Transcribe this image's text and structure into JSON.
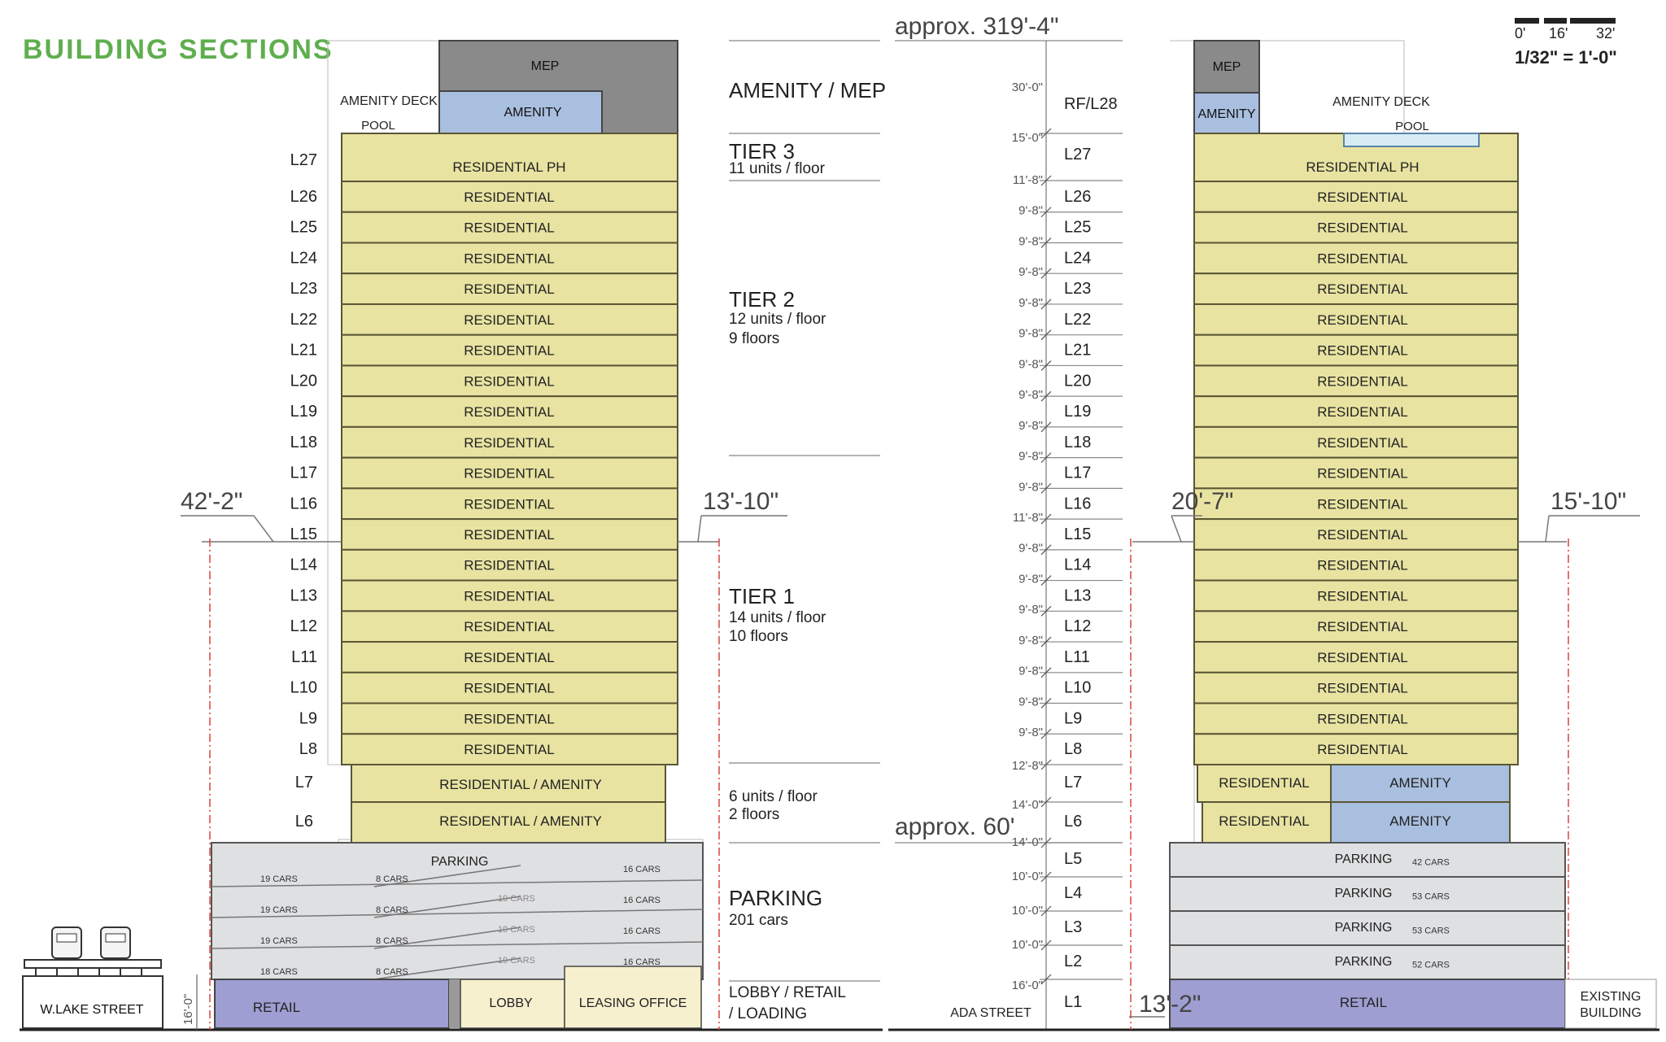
{
  "title": "BUILDING SECTIONS",
  "scale": {
    "marks": [
      "0'",
      "16'",
      "32'"
    ],
    "ratio": "1/32\" = 1'-0\""
  },
  "left_section": {
    "mep": "MEP",
    "amenity": "AMENITY",
    "amenity_deck": "AMENITY DECK",
    "pool": "POOL",
    "penthouse": {
      "level": "L27",
      "label": "RESIDENTIAL PH"
    },
    "residential_levels": [
      "L26",
      "L25",
      "L24",
      "L23",
      "L22",
      "L21",
      "L20",
      "L19",
      "L18",
      "L17",
      "L16",
      "L15",
      "L14",
      "L13",
      "L12",
      "L11",
      "L10",
      "L9",
      "L8"
    ],
    "residential_label": "RESIDENTIAL",
    "podium_levels": [
      {
        "level": "L7",
        "label": "RESIDENTIAL / AMENITY"
      },
      {
        "level": "L6",
        "label": "RESIDENTIAL / AMENITY"
      }
    ],
    "parking_title": "PARKING",
    "parking_rows": [
      {
        "left": "19 CARS",
        "mid": "8 CARS",
        "center": "",
        "right": "16 CARS"
      },
      {
        "left": "19 CARS",
        "mid": "8 CARS",
        "center": "19 CARS",
        "right": "16 CARS"
      },
      {
        "left": "19 CARS",
        "mid": "8 CARS",
        "center": "19 CARS",
        "right": "16 CARS"
      },
      {
        "left": "18 CARS",
        "mid": "8 CARS",
        "center": "19 CARS",
        "right": "16 CARS"
      }
    ],
    "ground": {
      "retail": "RETAIL",
      "lobby": "LOBBY",
      "leasing": "LEASING OFFICE"
    },
    "setback_left": "42'-2\"",
    "setback_right": "13'-10\"",
    "ground_height": "16'-0\"",
    "street": "W.LAKE STREET"
  },
  "tiers": [
    {
      "title": "AMENITY / MEP",
      "lines": []
    },
    {
      "title": "TIER 3",
      "lines": [
        "11 units / floor"
      ]
    },
    {
      "title": "TIER 2",
      "lines": [
        "12 units / floor",
        "9 floors"
      ]
    },
    {
      "title": "TIER 1",
      "lines": [
        "14 units / floor",
        "10 floors"
      ]
    },
    {
      "title": "",
      "lines": [
        "6 units / floor",
        "2 floors"
      ]
    },
    {
      "title": "PARKING",
      "lines": [
        "201 cars"
      ]
    },
    {
      "title": "LOBBY / RETAIL",
      "lines": [
        "/ LOADING"
      ]
    }
  ],
  "elevations": {
    "top": "approx. 319'-4\"",
    "podium": "approx. 60'",
    "floors": [
      {
        "level": "RF/L28",
        "height": "30'-0\""
      },
      {
        "level": "L27",
        "height": "15'-0\""
      },
      {
        "level": "L26",
        "height": "11'-8\""
      },
      {
        "level": "L25",
        "height": "9'-8\""
      },
      {
        "level": "L24",
        "height": "9'-8\""
      },
      {
        "level": "L23",
        "height": "9'-8\""
      },
      {
        "level": "L22",
        "height": "9'-8\""
      },
      {
        "level": "L21",
        "height": "9'-8\""
      },
      {
        "level": "L20",
        "height": "9'-8\""
      },
      {
        "level": "L19",
        "height": "9'-8\""
      },
      {
        "level": "L18",
        "height": "9'-8\""
      },
      {
        "level": "L17",
        "height": "9'-8\""
      },
      {
        "level": "L16",
        "height": "9'-8\""
      },
      {
        "level": "L15",
        "height": "11'-8\""
      },
      {
        "level": "L14",
        "height": "9'-8\""
      },
      {
        "level": "L13",
        "height": "9'-8\""
      },
      {
        "level": "L12",
        "height": "9'-8\""
      },
      {
        "level": "L11",
        "height": "9'-8\""
      },
      {
        "level": "L10",
        "height": "9'-8\""
      },
      {
        "level": "L9",
        "height": "9'-8\""
      },
      {
        "level": "L8",
        "height": "9'-8\""
      },
      {
        "level": "L7",
        "height": "12'-8\""
      },
      {
        "level": "L6",
        "height": "14'-0\""
      },
      {
        "level": "L5",
        "height": "14'-0\""
      },
      {
        "level": "L4",
        "height": "10'-0\""
      },
      {
        "level": "L3",
        "height": "10'-0\""
      },
      {
        "level": "L2",
        "height": "10'-0\""
      },
      {
        "level": "L1",
        "height": "16'-0\""
      }
    ]
  },
  "right_section": {
    "mep": "MEP",
    "amenity": "AMENITY",
    "amenity_deck": "AMENITY DECK",
    "pool": "POOL",
    "penthouse": "RESIDENTIAL PH",
    "residential_label": "RESIDENTIAL",
    "podium_rows": [
      {
        "left": "RESIDENTIAL",
        "right": "AMENITY"
      },
      {
        "left": "RESIDENTIAL",
        "right": "AMENITY"
      }
    ],
    "parking": [
      {
        "label": "PARKING",
        "cars": "42 CARS"
      },
      {
        "label": "PARKING",
        "cars": "53 CARS"
      },
      {
        "label": "PARKING",
        "cars": "53 CARS"
      },
      {
        "label": "PARKING",
        "cars": "52 CARS"
      }
    ],
    "retail": "RETAIL",
    "setback_left": "20'-7\"",
    "setback_right": "15'-10\"",
    "base_setback": "13'-2\"",
    "street": "ADA STREET",
    "existing": [
      "EXISTING",
      "BUILDING"
    ]
  },
  "colors": {
    "title": "#5fae4e",
    "residential": "#e8e3a1",
    "residential_edge": "#5a5634",
    "amenity": "#a9bfdf",
    "mep": "#8a8a8a",
    "parking": "#dfe0e2",
    "retail": "#9e9ed2",
    "lobby": "#f6f0cf",
    "dim_red": "#d6453b"
  }
}
